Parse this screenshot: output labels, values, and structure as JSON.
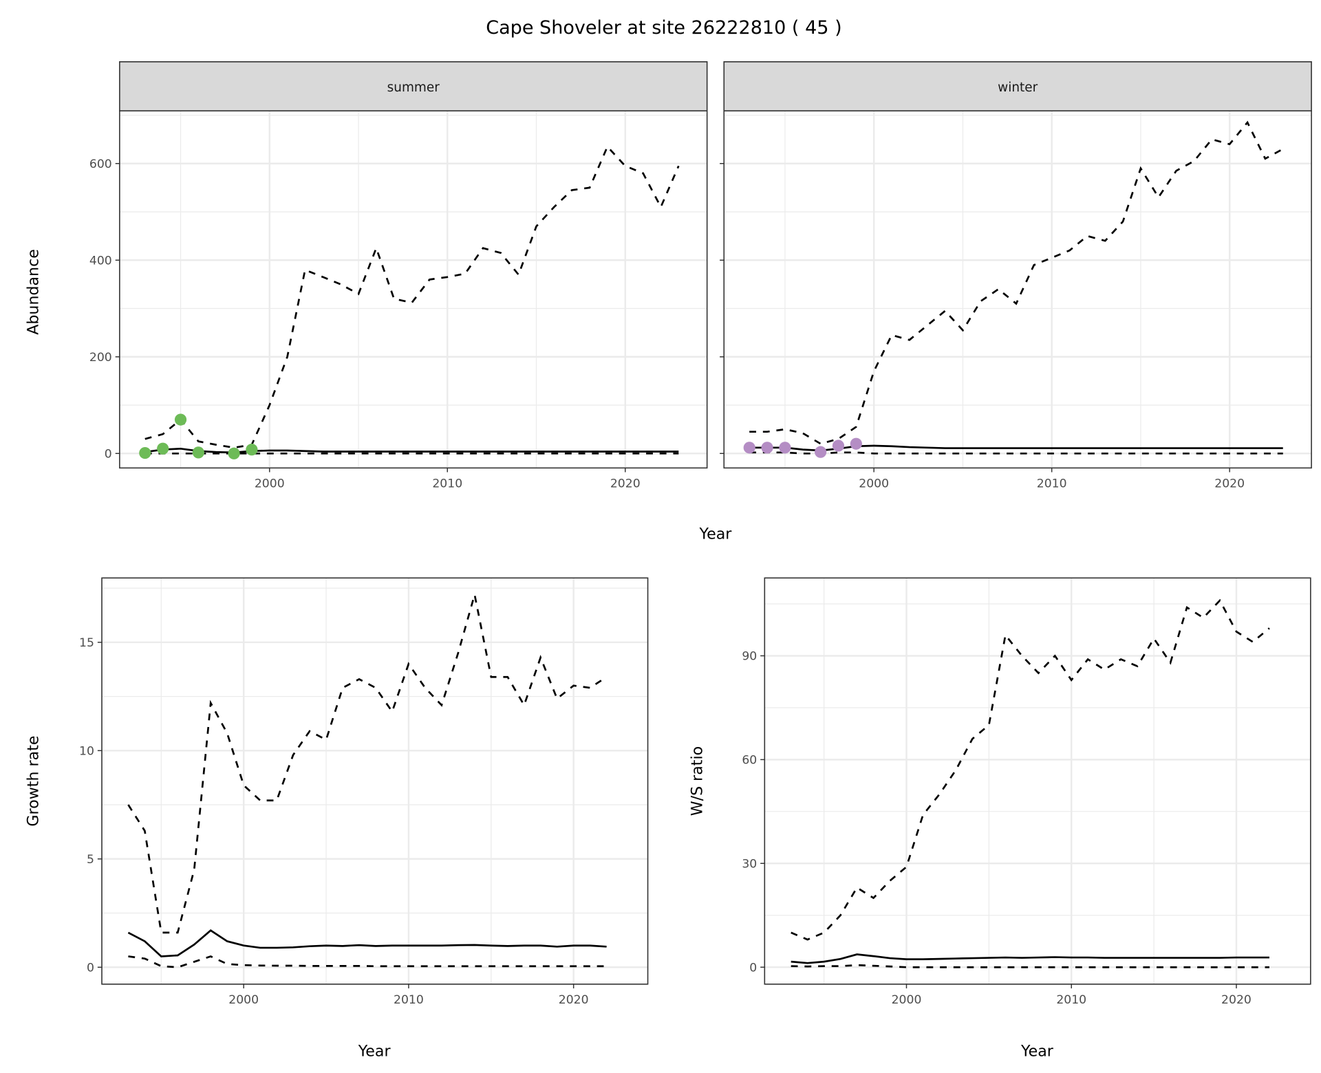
{
  "title": "Cape Shoveler at site 26222810 ( 45 )",
  "colors": {
    "summer_points": "#6dbb57",
    "winter_points": "#b48dc4",
    "line": "#000000",
    "strip": "#d9d9d9",
    "grid": "#ebebeb"
  },
  "chart_data": [
    {
      "type": "line",
      "facet": "summer",
      "xlabel": "Year",
      "ylabel": "Abundance",
      "xlim": [
        1991.57,
        2024.6
      ],
      "ylim": [
        -30,
        709
      ],
      "xticks": [
        2000,
        2010,
        2020
      ],
      "yticks": [
        0,
        200,
        400,
        600
      ],
      "x": [
        1993,
        1994,
        1995,
        1996,
        1997,
        1998,
        1999,
        2000,
        2001,
        2002,
        2003,
        2004,
        2005,
        2006,
        2007,
        2008,
        2009,
        2010,
        2011,
        2012,
        2013,
        2014,
        2015,
        2016,
        2017,
        2018,
        2019,
        2020,
        2021,
        2022,
        2023
      ],
      "series": [
        {
          "style": "dashed",
          "values": [
            30,
            40,
            70,
            25,
            18,
            12,
            18,
            100,
            200,
            380,
            365,
            350,
            330,
            425,
            320,
            312,
            360,
            365,
            372,
            425,
            415,
            370,
            470,
            510,
            545,
            550,
            635,
            595,
            580,
            510,
            595
          ]
        },
        {
          "style": "solid",
          "values": [
            3,
            8,
            10,
            5,
            3,
            2,
            5,
            6,
            6,
            5,
            4,
            4,
            4,
            4,
            4,
            4,
            4,
            4,
            4,
            4,
            4,
            4,
            4,
            4,
            4,
            4,
            4,
            4,
            4,
            4,
            4
          ]
        },
        {
          "style": "dashed",
          "values": [
            0,
            0,
            0,
            0,
            0,
            0,
            0,
            0,
            0,
            0,
            0,
            0,
            0,
            0,
            0,
            0,
            0,
            0,
            0,
            0,
            0,
            0,
            0,
            0,
            0,
            0,
            0,
            0,
            0,
            0,
            0
          ]
        }
      ],
      "points": {
        "x": [
          1993,
          1994,
          1995,
          1996,
          1998,
          1999
        ],
        "y": [
          1,
          10,
          70,
          2,
          0,
          8
        ]
      }
    },
    {
      "type": "line",
      "facet": "winter",
      "xlabel": "Year",
      "ylabel": "Abundance",
      "xlim": [
        1991.57,
        2024.6
      ],
      "ylim": [
        -30,
        709
      ],
      "xticks": [
        2000,
        2010,
        2020
      ],
      "yticks": [
        0,
        200,
        400,
        600
      ],
      "x": [
        1993,
        1994,
        1995,
        1996,
        1997,
        1998,
        1999,
        2000,
        2001,
        2002,
        2003,
        2004,
        2005,
        2006,
        2007,
        2008,
        2009,
        2010,
        2011,
        2012,
        2013,
        2014,
        2015,
        2016,
        2017,
        2018,
        2019,
        2020,
        2021,
        2022,
        2023
      ],
      "series": [
        {
          "style": "dashed",
          "values": [
            45,
            45,
            50,
            42,
            20,
            30,
            55,
            170,
            245,
            235,
            265,
            295,
            255,
            315,
            340,
            310,
            390,
            405,
            420,
            450,
            440,
            480,
            590,
            530,
            585,
            605,
            650,
            640,
            685,
            610,
            630
          ]
        },
        {
          "style": "solid",
          "values": [
            12,
            12,
            12,
            8,
            6,
            10,
            15,
            16,
            15,
            13,
            12,
            11,
            11,
            11,
            11,
            11,
            11,
            11,
            11,
            11,
            11,
            11,
            11,
            11,
            11,
            11,
            11,
            11,
            11,
            11,
            11
          ]
        },
        {
          "style": "dashed",
          "values": [
            2,
            2,
            2,
            0,
            0,
            2,
            2,
            0,
            0,
            0,
            0,
            0,
            0,
            0,
            0,
            0,
            0,
            0,
            0,
            0,
            0,
            0,
            0,
            0,
            0,
            0,
            0,
            0,
            0,
            0,
            0
          ]
        }
      ],
      "points": {
        "x": [
          1993,
          1994,
          1995,
          1997,
          1998,
          1999
        ],
        "y": [
          12,
          12,
          12,
          3,
          16,
          20
        ]
      }
    },
    {
      "type": "line",
      "xlabel": "Year",
      "ylabel": "Growth rate",
      "xlim": [
        1991.4,
        2024.5
      ],
      "ylim": [
        -0.78,
        17.97
      ],
      "xticks": [
        2000,
        2010,
        2020
      ],
      "yticks": [
        0,
        5,
        10,
        15
      ],
      "x": [
        1993,
        1994,
        1995,
        1996,
        1997,
        1998,
        1999,
        2000,
        2001,
        2002,
        2003,
        2004,
        2005,
        2006,
        2007,
        2008,
        2009,
        2010,
        2011,
        2012,
        2013,
        2014,
        2015,
        2016,
        2017,
        2018,
        2019,
        2020,
        2021,
        2022
      ],
      "series": [
        {
          "style": "dashed",
          "values": [
            7.5,
            6.3,
            1.6,
            1.6,
            4.5,
            12.2,
            10.8,
            8.4,
            7.7,
            7.7,
            9.8,
            10.9,
            10.5,
            12.9,
            13.3,
            12.9,
            11.8,
            14.0,
            12.9,
            12.1,
            14.5,
            17.2,
            13.4,
            13.4,
            12.1,
            14.3,
            12.4,
            13.0,
            12.9,
            13.4
          ]
        },
        {
          "style": "solid",
          "values": [
            1.6,
            1.2,
            0.5,
            0.55,
            1.05,
            1.7,
            1.2,
            1.0,
            0.9,
            0.9,
            0.92,
            0.97,
            1.0,
            0.98,
            1.02,
            0.98,
            1.0,
            1.0,
            1.0,
            1.0,
            1.02,
            1.03,
            1.0,
            0.98,
            1.0,
            1.0,
            0.95,
            1.0,
            1.0,
            0.95
          ]
        },
        {
          "style": "dashed",
          "values": [
            0.5,
            0.4,
            0.05,
            0.0,
            0.25,
            0.5,
            0.15,
            0.1,
            0.08,
            0.07,
            0.07,
            0.06,
            0.06,
            0.06,
            0.06,
            0.05,
            0.05,
            0.05,
            0.05,
            0.05,
            0.05,
            0.05,
            0.05,
            0.05,
            0.05,
            0.05,
            0.05,
            0.05,
            0.05,
            0.05
          ]
        }
      ]
    },
    {
      "type": "line",
      "xlabel": "Year",
      "ylabel": "W/S ratio",
      "xlim": [
        1991.4,
        2024.5
      ],
      "ylim": [
        -4.9,
        112.5
      ],
      "xticks": [
        2000,
        2010,
        2020
      ],
      "yticks": [
        0,
        30,
        60,
        90
      ],
      "x": [
        1993,
        1994,
        1995,
        1996,
        1997,
        1998,
        1999,
        2000,
        2001,
        2002,
        2003,
        2004,
        2005,
        2006,
        2007,
        2008,
        2009,
        2010,
        2011,
        2012,
        2013,
        2014,
        2015,
        2016,
        2017,
        2018,
        2019,
        2020,
        2021,
        2022
      ],
      "series": [
        {
          "style": "dashed",
          "values": [
            10,
            8,
            10,
            15,
            23,
            20,
            25,
            29,
            44,
            50,
            57,
            66,
            70,
            96,
            90,
            85,
            90,
            83,
            89,
            86,
            89,
            87,
            95,
            88,
            104,
            101,
            106,
            97,
            94,
            98
          ]
        },
        {
          "style": "solid",
          "values": [
            1.6,
            1.2,
            1.6,
            2.4,
            3.7,
            3.2,
            2.6,
            2.3,
            2.3,
            2.4,
            2.5,
            2.6,
            2.7,
            2.8,
            2.7,
            2.8,
            2.9,
            2.8,
            2.8,
            2.7,
            2.7,
            2.7,
            2.7,
            2.7,
            2.7,
            2.7,
            2.7,
            2.8,
            2.8,
            2.8
          ]
        },
        {
          "style": "dashed",
          "values": [
            0.3,
            0.2,
            0.3,
            0.3,
            0.6,
            0.4,
            0.2,
            0,
            0,
            0,
            0,
            0,
            0,
            0,
            0,
            0,
            0,
            0,
            0,
            0,
            0,
            0,
            0,
            0,
            0,
            0,
            0,
            0,
            0,
            0
          ]
        }
      ]
    }
  ]
}
